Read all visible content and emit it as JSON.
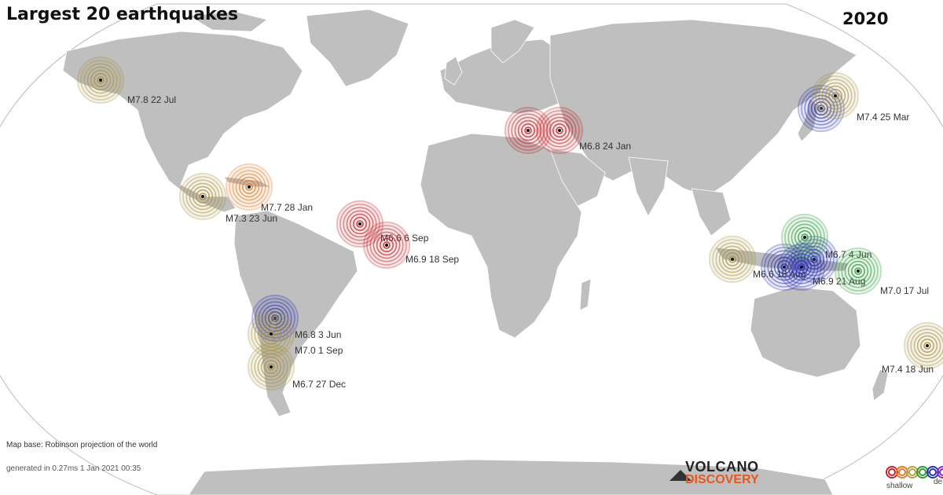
{
  "header": {
    "title": "Largest 20 earthquakes",
    "year": "2020"
  },
  "footer": {
    "map_base": "Map base: Robinson projection of the world",
    "generated": "generated in 0.27ms  1 Jan 2021 00:35"
  },
  "logo": {
    "line1": "VOLCANO",
    "line2": "DISCOVERY"
  },
  "legend": {
    "shallow": "shallow",
    "deep": "de",
    "colors": [
      "#c0282d",
      "#e07b2a",
      "#b9a040",
      "#2f9a3a",
      "#2c32b0",
      "#8b2fb0"
    ]
  },
  "depth_colors": {
    "red": "#c0282d",
    "orange": "#e07b2a",
    "olive": "#a89040",
    "green": "#2f9a3a",
    "blue": "#2c32b0"
  },
  "events": [
    {
      "id": "alaska",
      "label": "M7.8   22 Jul",
      "depth": "olive"
    },
    {
      "id": "oaxaca",
      "label": "M7.3   23 Jun",
      "depth": "olive"
    },
    {
      "id": "cuba",
      "label": "M7.7   28 Jan",
      "depth": "orange"
    },
    {
      "id": "atlantic1",
      "label": "M6.6   6 Sep",
      "depth": "red"
    },
    {
      "id": "atlantic2",
      "label": "M6.9   18 Sep",
      "depth": "red"
    },
    {
      "id": "turkey",
      "label": "M6.8   24 Jan",
      "depth": "red"
    },
    {
      "id": "kuril",
      "label": "M7.4   25 Mar",
      "depth": "olive"
    },
    {
      "id": "indonesia-w",
      "label": "M6.6   18 Aug",
      "depth": "olive"
    },
    {
      "id": "molucca",
      "label": "M6.7   4 Jun",
      "depth": "green"
    },
    {
      "id": "banda",
      "label": "M6.9   21 Aug",
      "depth": "blue"
    },
    {
      "id": "png",
      "label": "M7.0   17 Jul",
      "depth": "green"
    },
    {
      "id": "kermadec",
      "label": "M7.4   18 Jun",
      "depth": "olive"
    },
    {
      "id": "chile-n",
      "label": "M6.8   3 Jun",
      "depth": "blue"
    },
    {
      "id": "chile-c",
      "label": "M7.0   1 Sep",
      "depth": "olive"
    },
    {
      "id": "chile-s",
      "label": "M6.7   27 Dec",
      "depth": "olive"
    }
  ]
}
